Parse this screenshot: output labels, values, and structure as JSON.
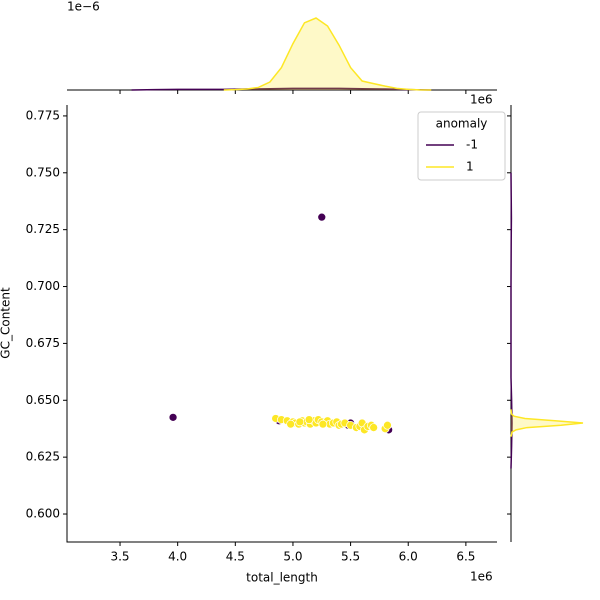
{
  "chart_data": [
    {
      "type": "scatter",
      "x_label": "total_length",
      "y_label": "GC_Content",
      "x_offset": "1e6",
      "xlim": [
        3040000,
        6770000
      ],
      "ylim": [
        0.5877,
        0.7798
      ],
      "xticks": [
        {
          "value": 3500000,
          "label": "3.5"
        },
        {
          "value": 4000000,
          "label": "4.0"
        },
        {
          "value": 4500000,
          "label": "4.5"
        },
        {
          "value": 5000000,
          "label": "5.0"
        },
        {
          "value": 5500000,
          "label": "5.5"
        },
        {
          "value": 6000000,
          "label": "6.0"
        },
        {
          "value": 6500000,
          "label": "6.5"
        }
      ],
      "yticks": [
        {
          "value": 0.6,
          "label": "0.600"
        },
        {
          "value": 0.625,
          "label": "0.625"
        },
        {
          "value": 0.65,
          "label": "0.650"
        },
        {
          "value": 0.675,
          "label": "0.675"
        },
        {
          "value": 0.7,
          "label": "0.700"
        },
        {
          "value": 0.725,
          "label": "0.725"
        },
        {
          "value": 0.75,
          "label": "0.750"
        },
        {
          "value": 0.775,
          "label": "0.775"
        }
      ],
      "legend": {
        "title": "anomaly",
        "position": "upper right"
      },
      "series": [
        {
          "name": "-1",
          "color": "#440154",
          "x": [
            5250000,
            3960000,
            4880000,
            5500000,
            5830000,
            5480000
          ],
          "values": [
            0.7305,
            0.6425,
            0.641,
            0.64,
            0.637,
            0.639
          ]
        },
        {
          "name": "1",
          "color": "#fde725",
          "x": [
            4850000,
            4900000,
            4950000,
            5000000,
            5020000,
            5050000,
            5080000,
            5100000,
            5120000,
            5150000,
            5180000,
            5200000,
            5220000,
            5250000,
            5280000,
            5300000,
            5320000,
            5350000,
            5380000,
            5400000,
            5420000,
            5450000,
            5500000,
            5550000,
            5580000,
            5600000,
            5620000,
            5650000,
            5680000,
            5700000,
            5800000,
            5820000,
            4980000,
            5060000,
            5140000,
            5260000
          ],
          "values": [
            0.642,
            0.6415,
            0.641,
            0.6405,
            0.64,
            0.6395,
            0.641,
            0.64,
            0.6405,
            0.6395,
            0.641,
            0.64,
            0.6415,
            0.6405,
            0.64,
            0.641,
            0.6395,
            0.64,
            0.6405,
            0.639,
            0.6395,
            0.64,
            0.639,
            0.638,
            0.6385,
            0.64,
            0.637,
            0.6385,
            0.639,
            0.638,
            0.6375,
            0.639,
            0.6395,
            0.6405,
            0.6415,
            0.6395
          ]
        }
      ]
    },
    {
      "type": "kde",
      "orientation": "vertical",
      "y_offset": "1e−6",
      "xlim": [
        3040000,
        6770000
      ],
      "ylim": [
        0,
        2.5e-06
      ],
      "series": [
        {
          "color": "#440154",
          "x": [
            3600000,
            3800000,
            4000000,
            4200000,
            4400000,
            4600000,
            4800000,
            5000000,
            5200000,
            5400000,
            5600000,
            5800000,
            6000000,
            6200000
          ],
          "values": [
            0,
            1e-08,
            2e-08,
            2e-08,
            2e-08,
            3e-08,
            4e-08,
            5e-08,
            5e-08,
            5e-08,
            4e-08,
            3e-08,
            1e-08,
            0
          ]
        },
        {
          "color": "#fde725",
          "x": [
            4400000,
            4500000,
            4600000,
            4700000,
            4800000,
            4900000,
            5000000,
            5100000,
            5200000,
            5300000,
            5400000,
            5500000,
            5600000,
            5700000,
            5800000,
            5900000,
            6000000,
            6100000,
            6200000
          ],
          "values": [
            0,
            1e-08,
            3e-08,
            8e-08,
            2.5e-07,
            7e-07,
            1.45e-06,
            2.1e-06,
            2.25e-06,
            2e-06,
            1.4e-06,
            7e-07,
            2.8e-07,
            2e-07,
            1.2e-07,
            5e-08,
            2e-08,
            5e-09,
            0
          ]
        }
      ]
    },
    {
      "type": "kde",
      "orientation": "horizontal",
      "xlim": [
        0,
        420
      ],
      "ylim": [
        0.5877,
        0.7798
      ],
      "series": [
        {
          "color": "#440154",
          "y": [
            0.62,
            0.63,
            0.64,
            0.65,
            0.66,
            0.7,
            0.72,
            0.73,
            0.74,
            0.75
          ],
          "values": [
            0,
            3,
            5,
            3,
            0,
            0,
            1,
            2,
            1,
            0
          ]
        },
        {
          "color": "#fde725",
          "y": [
            0.634,
            0.636,
            0.637,
            0.638,
            0.639,
            0.64,
            0.641,
            0.642,
            0.643,
            0.644,
            0.646
          ],
          "values": [
            0,
            5,
            25,
            80,
            250,
            360,
            220,
            70,
            15,
            2,
            0
          ]
        }
      ]
    }
  ]
}
